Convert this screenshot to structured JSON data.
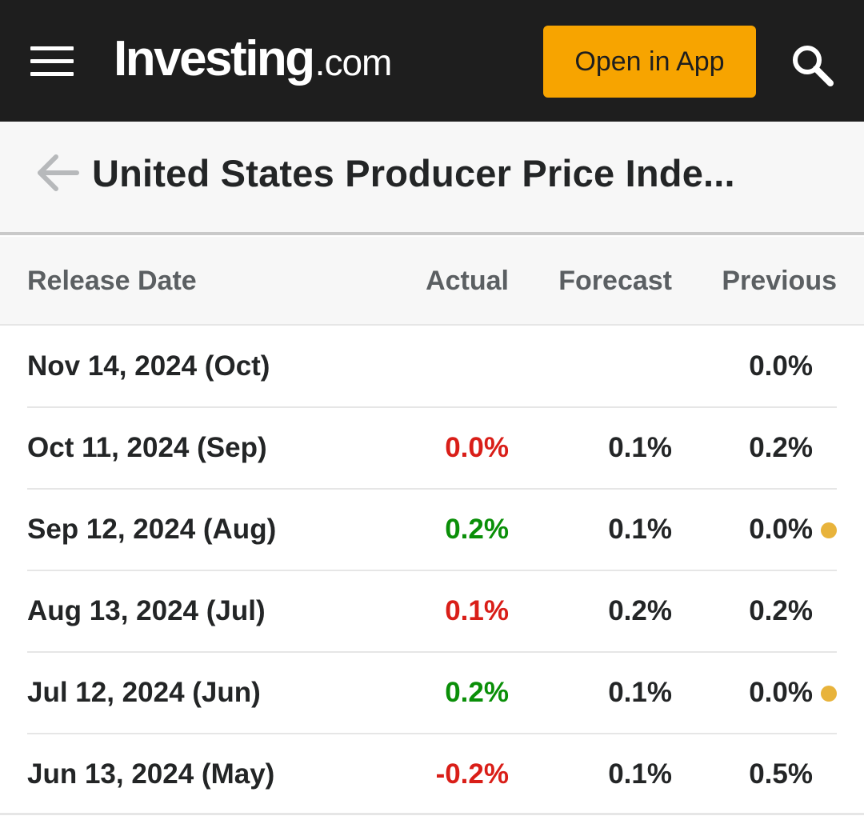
{
  "header": {
    "logo_main": "Investing",
    "logo_suffix": ".com",
    "open_app_label": "Open in App",
    "background": "#1e1e1e",
    "accent": "#f7a400"
  },
  "title_bar": {
    "title": "United States Producer Price Inde..."
  },
  "table": {
    "columns": {
      "date": "Release Date",
      "actual": "Actual",
      "forecast": "Forecast",
      "previous": "Previous"
    },
    "rows": [
      {
        "date": "Nov 14, 2024 (Oct)",
        "actual": "",
        "actual_color": "",
        "forecast": "",
        "previous": "0.0%",
        "revised": false
      },
      {
        "date": "Oct 11, 2024 (Sep)",
        "actual": "0.0%",
        "actual_color": "#d91e18",
        "forecast": "0.1%",
        "previous": "0.2%",
        "revised": false
      },
      {
        "date": "Sep 12, 2024 (Aug)",
        "actual": "0.2%",
        "actual_color": "#0a8f08",
        "forecast": "0.1%",
        "previous": "0.0%",
        "revised": true
      },
      {
        "date": "Aug 13, 2024 (Jul)",
        "actual": "0.1%",
        "actual_color": "#d91e18",
        "forecast": "0.2%",
        "previous": "0.2%",
        "revised": false
      },
      {
        "date": "Jul 12, 2024 (Jun)",
        "actual": "0.2%",
        "actual_color": "#0a8f08",
        "forecast": "0.1%",
        "previous": "0.0%",
        "revised": true
      },
      {
        "date": "Jun 13, 2024 (May)",
        "actual": "-0.2%",
        "actual_color": "#d91e18",
        "forecast": "0.1%",
        "previous": "0.5%",
        "revised": false
      }
    ]
  },
  "colors": {
    "negative": "#d91e18",
    "positive": "#0a8f08",
    "revision_dot": "#e8b33b"
  }
}
